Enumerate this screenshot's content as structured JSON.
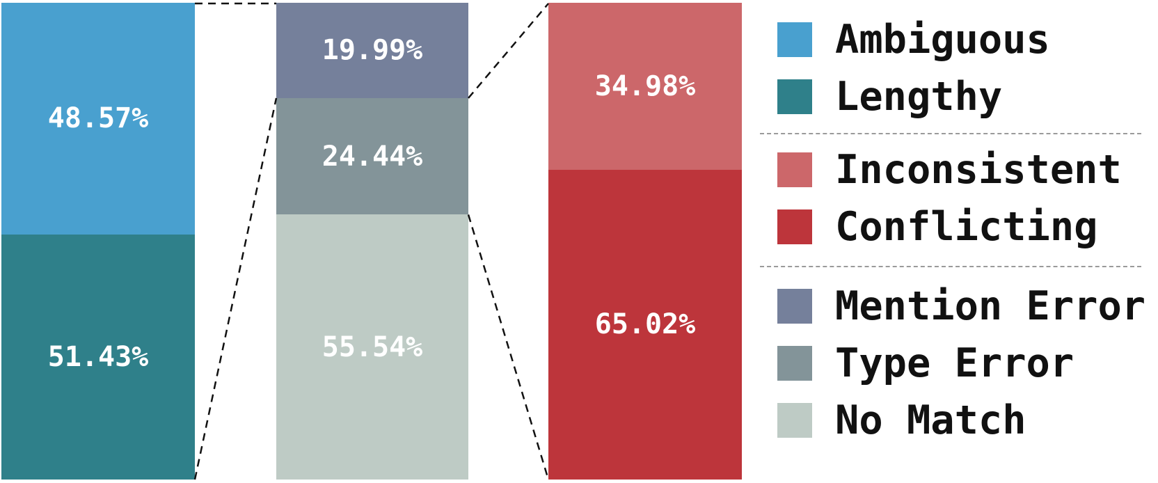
{
  "chart_data": {
    "type": "bar",
    "subtype": "stacked-percentage-drilldown",
    "orientation": "vertical",
    "title": "",
    "grid": false,
    "legend_position": "right",
    "label_color": "#FFFFFF",
    "connector_style": "dashed-black",
    "bars": [
      {
        "name": "mention-error-breakdown",
        "segments": [
          {
            "label": "Ambiguous",
            "value": 48.57,
            "text": "48.57%",
            "color": "#49A0CF"
          },
          {
            "label": "Lengthy",
            "value": 51.43,
            "text": "51.43%",
            "color": "#2F808A"
          }
        ]
      },
      {
        "name": "overall-distribution",
        "segments": [
          {
            "label": "Mention Error",
            "value": 19.99,
            "text": "19.99%",
            "color": "#75809B"
          },
          {
            "label": "Type Error",
            "value": 24.44,
            "text": "24.44%",
            "color": "#839499"
          },
          {
            "label": "No Match",
            "value": 55.54,
            "text": "55.54%",
            "color": "#BECBC5"
          }
        ]
      },
      {
        "name": "type-error-breakdown",
        "segments": [
          {
            "label": "Inconsistent",
            "value": 34.98,
            "text": "34.98%",
            "color": "#CC676A"
          },
          {
            "label": "Conflicting",
            "value": 65.02,
            "text": "65.02%",
            "color": "#BD353B"
          }
        ]
      }
    ],
    "legend": {
      "groups": [
        {
          "items": [
            {
              "label": "Ambiguous",
              "color": "#49A0CF"
            },
            {
              "label": "Lengthy",
              "color": "#2F808A"
            }
          ]
        },
        {
          "items": [
            {
              "label": "Inconsistent",
              "color": "#CC676A"
            },
            {
              "label": "Conflicting",
              "color": "#BD353B"
            }
          ]
        },
        {
          "items": [
            {
              "label": "Mention Error",
              "color": "#75809B"
            },
            {
              "label": "Type Error",
              "color": "#839499"
            },
            {
              "label": "No Match",
              "color": "#BECBC5"
            }
          ]
        }
      ]
    }
  }
}
